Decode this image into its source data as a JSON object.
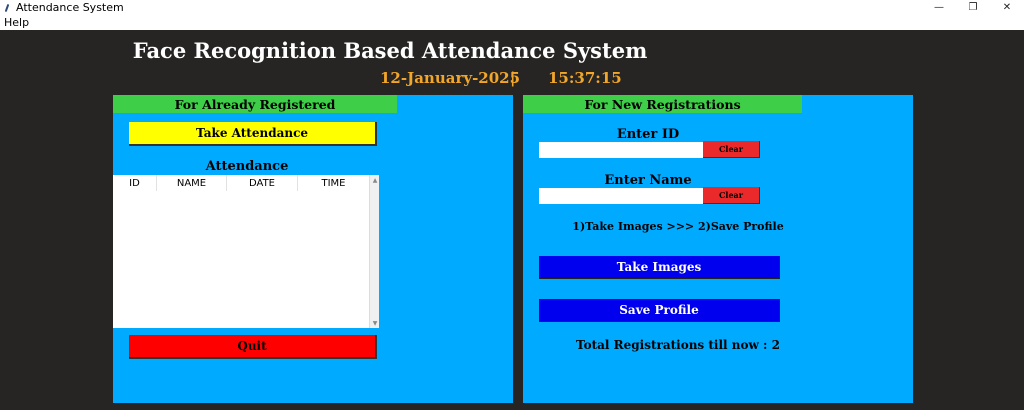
{
  "window": {
    "title": "Attendance System",
    "controls": {
      "minimize": "—",
      "restore": "❐",
      "close": "✕"
    }
  },
  "menu": {
    "items": [
      "Help"
    ]
  },
  "header": {
    "title": "Face Recognition Based Attendance System",
    "date": "12-January-2025",
    "separator": "|",
    "time": "15:37:15",
    "accent_color": "#f2a62a"
  },
  "left_panel": {
    "heading": "For Already Registered",
    "take_attendance_label": "Take Attendance",
    "attendance_label": "Attendance",
    "table": {
      "columns": [
        "ID",
        "NAME",
        "DATE",
        "TIME"
      ],
      "rows": []
    },
    "quit_label": "Quit"
  },
  "right_panel": {
    "heading": "For New Registrations",
    "enter_id_label": "Enter ID",
    "id_value": "",
    "clear_label": "Clear",
    "enter_name_label": "Enter Name",
    "name_value": "",
    "steps_label": "1)Take Images  >>>  2)Save Profile",
    "take_images_label": "Take Images",
    "save_profile_label": "Save Profile",
    "total_label": "Total Registrations till now  : 2"
  },
  "colors": {
    "background": "#262523",
    "panel": "#00aaff",
    "panel_heading": "#3ece48",
    "take_attendance": "#ffff00",
    "quit": "#ff0000",
    "clear": "#ea2a2a",
    "action_blue": "#0000ee"
  }
}
